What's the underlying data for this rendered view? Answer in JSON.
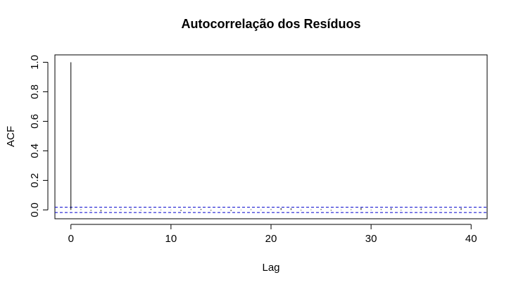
{
  "chart_data": {
    "type": "bar",
    "title": "Autocorrelação dos Resíduos",
    "xlabel": "Lag",
    "ylabel": "ACF",
    "xlim": [
      -1.6,
      41.6
    ],
    "ylim": [
      -0.06,
      1.05
    ],
    "x_ticks": [
      0,
      10,
      20,
      30,
      40
    ],
    "y_ticks": [
      "0.0",
      "0.2",
      "0.4",
      "0.6",
      "0.8",
      "1.0"
    ],
    "lags": [
      0,
      1,
      2,
      3,
      4,
      5,
      6,
      7,
      8,
      9,
      10,
      11,
      12,
      13,
      14,
      15,
      16,
      17,
      18,
      19,
      20,
      21,
      22,
      23,
      24,
      25,
      26,
      27,
      28,
      29,
      30,
      31,
      32,
      33,
      34,
      35,
      36,
      37,
      38,
      39,
      40
    ],
    "acf": [
      1.0,
      0.004,
      -0.006,
      -0.01,
      0.003,
      0.005,
      0.008,
      -0.004,
      0.006,
      -0.003,
      0.002,
      -0.007,
      0.004,
      0.006,
      -0.005,
      0.003,
      -0.008,
      0.002,
      0.004,
      -0.003,
      0.005,
      0.012,
      0.01,
      -0.004,
      0.003,
      0.006,
      -0.005,
      0.002,
      0.004,
      0.014,
      -0.003,
      0.005,
      0.011,
      -0.004,
      0.003,
      0.009,
      -0.002,
      0.004,
      0.006,
      0.012,
      0.003
    ],
    "conf_bounds": [
      0.018,
      -0.018
    ],
    "conf_color": "#0000cc",
    "bar_color": "#000000"
  }
}
